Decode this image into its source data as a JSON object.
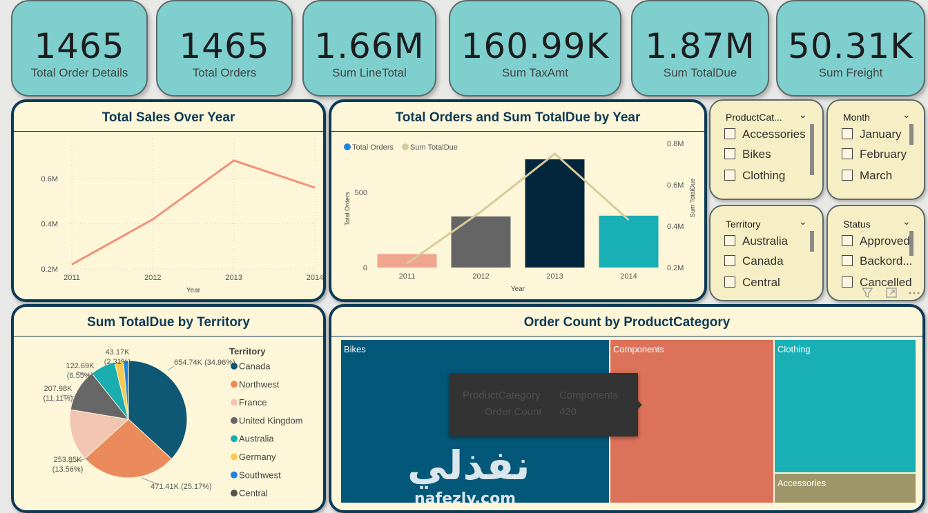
{
  "kpis": [
    {
      "value": "1465",
      "label": "Total Order Details"
    },
    {
      "value": "1465",
      "label": "Total Orders"
    },
    {
      "value": "1.66M",
      "label": "Sum LineTotal"
    },
    {
      "value": "160.99K",
      "label": "Sum TaxAmt"
    },
    {
      "value": "1.87M",
      "label": "Sum TotalDue"
    },
    {
      "value": "50.31K",
      "label": "Sum Freight"
    }
  ],
  "line_panel": {
    "title": "Total Sales Over Year"
  },
  "combo_panel": {
    "title": "Total Orders and Sum TotalDue by Year"
  },
  "pie_panel": {
    "title": "Sum TotalDue by Territory",
    "legend_title": "Territory"
  },
  "tree_panel": {
    "title": "Order Count by ProductCategory"
  },
  "slicers": [
    {
      "header": "ProductCat...",
      "items": [
        "Accessories",
        "Bikes",
        "Clothing"
      ]
    },
    {
      "header": "Month",
      "items": [
        "January",
        "February",
        "March"
      ]
    },
    {
      "header": "Territory",
      "items": [
        "Australia",
        "Canada",
        "Central"
      ]
    },
    {
      "header": "Status",
      "items": [
        "Approved",
        "Backord...",
        "Cancelled"
      ]
    }
  ],
  "tooltip": {
    "key1": "ProductCategory",
    "val1": "Components",
    "key2": "Order Count",
    "val2": "420"
  },
  "watermark": {
    "arabic": "نفذلي",
    "latin": "nafezly.com"
  },
  "icons": [
    "filter-icon",
    "focus-mode-icon",
    "more-options-icon",
    "chevron-down-icon"
  ],
  "colors": {
    "panel_border": "#0d3a55",
    "kpi_bg": "#7fcfcf",
    "panel_bg": "#fdf6d8"
  },
  "chart_data": [
    {
      "type": "line",
      "title": "Total Sales Over Year",
      "xlabel": "Year",
      "ylabel": "",
      "x": [
        "2011",
        "2012",
        "2013",
        "2014"
      ],
      "x_ticks": [
        "2011",
        "2012",
        "2013",
        "2014"
      ],
      "y_ticks": [
        "0.2M",
        "0.4M",
        "0.6M"
      ],
      "y_tick_values": [
        0.2,
        0.4,
        0.6
      ],
      "ylim": [
        0.17,
        0.78
      ],
      "series": [
        {
          "values": [
            0.22,
            0.42,
            0.68,
            0.56
          ],
          "color": "#f0907a"
        }
      ]
    },
    {
      "type": "bar",
      "title": "Total Orders and Sum TotalDue by Year",
      "xlabel": "Year",
      "ylabel": "Total Orders",
      "y2label": "Sum TotalDue",
      "categories": [
        "2011",
        "2012",
        "2013",
        "2014"
      ],
      "y_ticks": [
        "0",
        "500"
      ],
      "y_tick_values": [
        0,
        500
      ],
      "ylim": [
        0,
        780
      ],
      "y2_ticks": [
        "0.2M",
        "0.4M",
        "0.6M",
        "0.8M"
      ],
      "y2_tick_values": [
        0.2,
        0.4,
        0.6,
        0.8
      ],
      "y2lim": [
        0.2,
        0.8
      ],
      "legend": [
        "Total Orders",
        "Sum TotalDue"
      ],
      "series": [
        {
          "name": "Total Orders",
          "values": [
            90,
            340,
            720,
            345
          ],
          "colors": [
            "#f0a58e",
            "#656565",
            "#03263d",
            "#18afb5"
          ]
        },
        {
          "name": "Sum TotalDue",
          "values": [
            0.22,
            0.47,
            0.75,
            0.43
          ],
          "color": "#d6cc9a"
        }
      ]
    },
    {
      "type": "pie",
      "title": "Sum TotalDue by Territory",
      "legend_title": "Territory",
      "slices": [
        {
          "name": "Canada",
          "value": 654.74,
          "label": "654.74K",
          "pct": "(34.96%)",
          "color": "#0e5775"
        },
        {
          "name": "Northwest",
          "value": 471.41,
          "label": "471.41K",
          "pct": "(25.17%)",
          "color": "#eb8b5c"
        },
        {
          "name": "France",
          "value": 253.85,
          "label": "253.85K",
          "pct": "(13.56%)",
          "color": "#f2c5b3"
        },
        {
          "name": "United Kingdom",
          "value": 207.98,
          "label": "207.98K",
          "pct": "(11.11%)",
          "color": "#676767"
        },
        {
          "name": "Australia",
          "value": 122.69,
          "label": "122.69K",
          "pct": "(6.55%)",
          "color": "#1aaeb1"
        },
        {
          "name": "Germany",
          "value": 43.17,
          "label": "43.17K",
          "pct": "(2.31%)",
          "color": "#f6cb4f"
        },
        {
          "name": "Southwest",
          "value": 24.0,
          "label": "",
          "pct": "",
          "color": "#1e82e0"
        },
        {
          "name": "Central",
          "value": 0.5,
          "label": "",
          "pct": "",
          "color": "#555549"
        }
      ]
    },
    {
      "type": "treemap",
      "title": "Order Count by ProductCategory",
      "items": [
        {
          "name": "Bikes",
          "color": "#03587a"
        },
        {
          "name": "Components",
          "value": 420,
          "color": "#dc725a"
        },
        {
          "name": "Clothing",
          "color": "#18afb5"
        },
        {
          "name": "Accessories",
          "color": "#9f9669"
        }
      ]
    }
  ]
}
